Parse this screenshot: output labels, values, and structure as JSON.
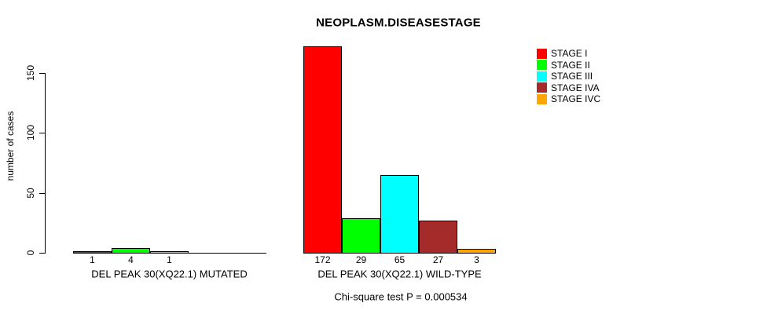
{
  "chart_data": {
    "type": "bar",
    "title": "NEOPLASM.DISEASESTAGE",
    "ylabel": "number of cases",
    "xlabel": "",
    "ylim": [
      0,
      172
    ],
    "yticks": [
      0,
      50,
      100,
      150
    ],
    "grid": false,
    "legend_position": "top-right",
    "legend": [
      {
        "label": "STAGE I",
        "color": "#FF0000"
      },
      {
        "label": "STAGE II",
        "color": "#00FF00"
      },
      {
        "label": "STAGE III",
        "color": "#00FFFF"
      },
      {
        "label": "STAGE IVA",
        "color": "#A52A2A"
      },
      {
        "label": "STAGE IVC",
        "color": "#FFA500"
      }
    ],
    "categories": [
      "STAGE I",
      "STAGE II",
      "STAGE III",
      "STAGE IVA",
      "STAGE IVC"
    ],
    "groups": [
      {
        "label": "DEL PEAK 30(XQ22.1) MUTATED",
        "values": [
          1,
          4,
          1,
          0,
          0
        ]
      },
      {
        "label": "DEL PEAK 30(XQ22.1) WILD-TYPE",
        "values": [
          172,
          29,
          65,
          27,
          3
        ]
      }
    ],
    "footnote": "Chi-square test P = 0.000534",
    "colors": {
      "background": "#FFFFFF",
      "axis": "#000000",
      "text": "#000000"
    }
  }
}
